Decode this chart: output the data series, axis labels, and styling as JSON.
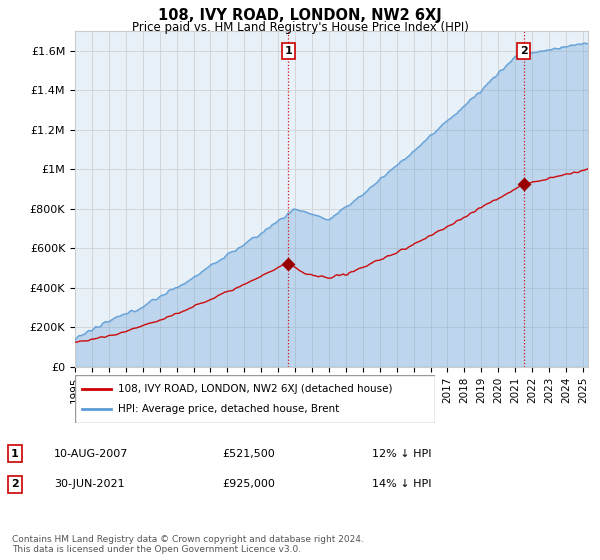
{
  "title": "108, IVY ROAD, LONDON, NW2 6XJ",
  "subtitle": "Price paid vs. HM Land Registry's House Price Index (HPI)",
  "ylabel_ticks": [
    "£0",
    "£200K",
    "£400K",
    "£600K",
    "£800K",
    "£1M",
    "£1.2M",
    "£1.4M",
    "£1.6M"
  ],
  "ytick_values": [
    0,
    200000,
    400000,
    600000,
    800000,
    1000000,
    1200000,
    1400000,
    1600000
  ],
  "ylim": [
    0,
    1700000
  ],
  "xlim_start": 1995.0,
  "xlim_end": 2025.3,
  "purchase1_x": 2007.6,
  "purchase1_y": 521500,
  "purchase1_label": "1",
  "purchase1_date": "10-AUG-2007",
  "purchase1_price": "£521,500",
  "purchase1_hpi": "12% ↓ HPI",
  "purchase2_x": 2021.5,
  "purchase2_y": 925000,
  "purchase2_label": "2",
  "purchase2_date": "30-JUN-2021",
  "purchase2_price": "£925,000",
  "purchase2_hpi": "14% ↓ HPI",
  "legend_line1": "108, IVY ROAD, LONDON, NW2 6XJ (detached house)",
  "legend_line2": "HPI: Average price, detached house, Brent",
  "footer": "Contains HM Land Registry data © Crown copyright and database right 2024.\nThis data is licensed under the Open Government Licence v3.0.",
  "hpi_color": "#5b9bd5",
  "hpi_fill": "#ddeeff",
  "price_color": "#cc0000",
  "vline_color": "#cc0000",
  "dot_color": "#990000",
  "background_color": "#ffffff",
  "grid_color": "#cccccc",
  "plot_bg": "#e8f0f8"
}
